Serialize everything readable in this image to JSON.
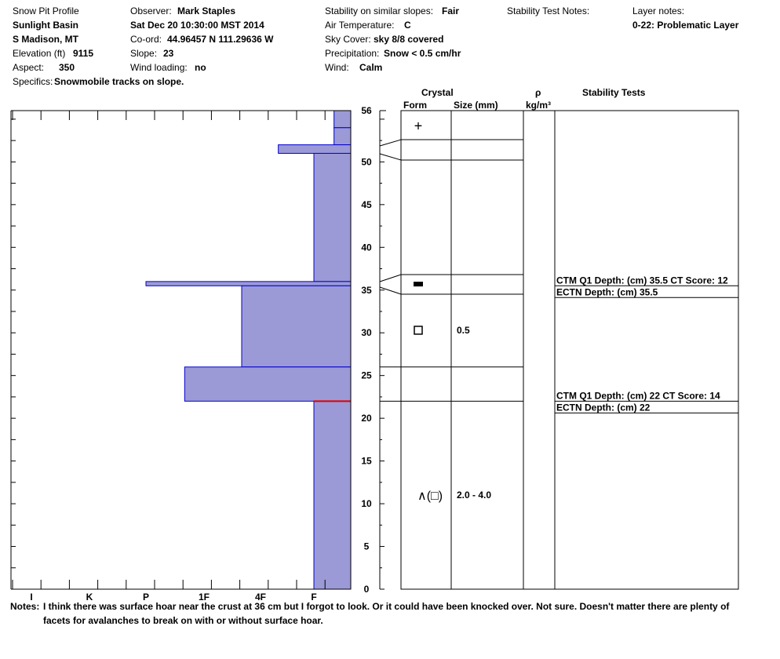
{
  "header": {
    "title": "Snow Pit Profile",
    "location": "Sunlight Basin",
    "range": "S Madison, MT",
    "elevation_label": "Elevation (ft)",
    "elevation_value": "9115",
    "aspect_label": "Aspect:",
    "aspect_value": "350",
    "specifics_label": "Specifics:",
    "specifics_value": "Snowmobile tracks on slope.",
    "observer_label": "Observer:",
    "observer_value": "Mark Staples",
    "datetime": "Sat Dec 20 10:30:00 MST 2014",
    "coord_label": "Co-ord:",
    "coord_value": "44.96457 N 111.29636 W",
    "slope_label": "Slope:",
    "slope_value": "23",
    "wind_loading_label": "Wind loading:",
    "wind_loading_value": "no",
    "stability_label": "Stability on similar slopes:",
    "stability_value": "Fair",
    "air_temp_label": "Air Temperature:",
    "air_temp_value": "C",
    "sky_label": "Sky Cover:",
    "sky_value": "sky 8/8 covered",
    "precip_label": "Precipitation:",
    "precip_value": "Snow < 0.5 cm/hr",
    "wind_label": "Wind:",
    "wind_value": "Calm",
    "stability_notes_label": "Stability Test Notes:",
    "layer_notes_label": "Layer notes:",
    "layer_notes_value": "0-22: Problematic Layer"
  },
  "columns": {
    "crystal": "Crystal",
    "form": "Form",
    "size": "Size (mm)",
    "rho": "ρ",
    "density_unit": "kg/m³",
    "stability_tests": "Stability Tests"
  },
  "notes": {
    "label": "Notes:",
    "text": "I think there was surface hoar near the crust at 36 cm but I forgot to look. Or it could have been knocked over. Not sure. Doesn't matter there are plenty of facets for avalanches to break on with or without surface hoar."
  },
  "chart_data": {
    "type": "bar",
    "orientation": "horizontal",
    "y_axis": {
      "label": "",
      "range": [
        0,
        56
      ],
      "ticks": [
        0,
        5,
        10,
        15,
        20,
        25,
        30,
        35,
        40,
        45,
        50,
        56
      ]
    },
    "x_axis": {
      "label": "",
      "categories": [
        "I",
        "K",
        "P",
        "1F",
        "4F",
        "F"
      ]
    },
    "hardness_layers": [
      {
        "bottom": 54,
        "top": 56,
        "hardness": "F-"
      },
      {
        "bottom": 52,
        "top": 54,
        "hardness": "F-"
      },
      {
        "bottom": 51,
        "top": 52,
        "hardness": "4F-"
      },
      {
        "bottom": 36,
        "top": 51,
        "hardness": "F"
      },
      {
        "bottom": 35.5,
        "top": 36,
        "hardness": "P"
      },
      {
        "bottom": 26,
        "top": 35.5,
        "hardness": "4F+"
      },
      {
        "bottom": 22,
        "top": 26,
        "hardness": "1F+"
      },
      {
        "bottom": 0,
        "top": 22,
        "hardness": "F"
      }
    ],
    "problem_layer_depth": 22,
    "layer_boundaries": [
      51,
      36,
      35.5,
      26,
      22
    ],
    "crystals": [
      {
        "depth": 54.2,
        "form": "+",
        "size": ""
      },
      {
        "depth": 35.7,
        "form": "▬",
        "size": ""
      },
      {
        "depth": 30.3,
        "form": "□",
        "size": "0.5"
      },
      {
        "depth": 11,
        "form": "∧(□)",
        "size": "2.0 - 4.0"
      }
    ],
    "stability_tests": [
      {
        "depth": 35.5,
        "text": "CTM Q1 Depth: (cm) 35.5 CT Score: 12"
      },
      {
        "depth": 35.5,
        "text": "ECTN  Depth: (cm) 35.5"
      },
      {
        "depth": 22,
        "text": "CTM Q1 Depth: (cm) 22 CT Score: 14"
      },
      {
        "depth": 22,
        "text": "ECTN  Depth: (cm) 22"
      }
    ],
    "colors": {
      "fill": "#9b9ad6",
      "edge": "#0000cc",
      "problem_line": "#dd0000",
      "axis": "#000000"
    }
  }
}
